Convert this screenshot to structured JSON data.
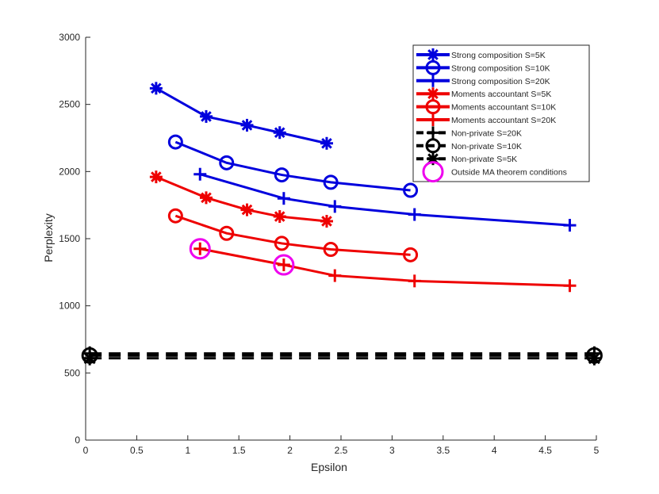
{
  "chart_data": {
    "type": "line",
    "xlabel": "Epsilon",
    "ylabel": "Perplexity",
    "title": "",
    "xlim": [
      0,
      5
    ],
    "ylim": [
      0,
      3000
    ],
    "x_ticks": [
      0,
      0.5,
      1,
      1.5,
      2,
      2.5,
      3,
      3.5,
      4,
      4.5,
      5
    ],
    "x_tick_labels": [
      "0",
      "0.5",
      "1",
      "1.5",
      "2",
      "2.5",
      "3",
      "3.5",
      "4",
      "4.5",
      "5"
    ],
    "y_ticks": [
      0,
      500,
      1000,
      1500,
      2000,
      2500,
      3000
    ],
    "y_tick_labels": [
      "0",
      "500",
      "1000",
      "1500",
      "2000",
      "2500",
      "3000"
    ],
    "legend_position": "top-right",
    "series": [
      {
        "name": "Strong composition S=5K",
        "color": "#0000dd",
        "marker": "asterisk",
        "dashed": false,
        "x": [
          0.69,
          1.18,
          1.58,
          1.9,
          2.36
        ],
        "y": [
          2620,
          2410,
          2345,
          2290,
          2210
        ]
      },
      {
        "name": "Strong composition S=10K",
        "color": "#0000dd",
        "marker": "circle",
        "dashed": false,
        "x": [
          0.88,
          1.38,
          1.92,
          2.4,
          3.18
        ],
        "y": [
          2220,
          2065,
          1975,
          1920,
          1860
        ]
      },
      {
        "name": "Strong composition S=20K",
        "color": "#0000dd",
        "marker": "plus",
        "dashed": false,
        "x": [
          1.12,
          1.94,
          2.44,
          3.22,
          4.74
        ],
        "y": [
          1980,
          1800,
          1740,
          1680,
          1600
        ]
      },
      {
        "name": "Moments accountant S=5K",
        "color": "#ee0000",
        "marker": "asterisk",
        "dashed": false,
        "x": [
          0.69,
          1.18,
          1.58,
          1.9,
          2.36
        ],
        "y": [
          1960,
          1805,
          1715,
          1665,
          1630
        ]
      },
      {
        "name": "Moments accountant S=10K",
        "color": "#ee0000",
        "marker": "circle",
        "dashed": false,
        "x": [
          0.88,
          1.38,
          1.92,
          2.4,
          3.18
        ],
        "y": [
          1670,
          1540,
          1465,
          1420,
          1380
        ]
      },
      {
        "name": "Moments accountant S=20K",
        "color": "#ee0000",
        "marker": "plus",
        "dashed": false,
        "x": [
          1.12,
          1.94,
          2.44,
          3.22,
          4.74
        ],
        "y": [
          1425,
          1305,
          1225,
          1185,
          1150
        ]
      },
      {
        "name": "Non-private S=20K",
        "color": "#000000",
        "marker": "plus",
        "dashed": true,
        "x": [
          0.04,
          4.98
        ],
        "y": [
          645,
          645
        ]
      },
      {
        "name": "Non-private S=10K",
        "color": "#000000",
        "marker": "circle",
        "dashed": true,
        "x": [
          0.04,
          4.98
        ],
        "y": [
          630,
          630
        ]
      },
      {
        "name": "Non-private S=5K",
        "color": "#000000",
        "marker": "asterisk",
        "dashed": true,
        "x": [
          0.04,
          4.98
        ],
        "y": [
          610,
          610
        ]
      },
      {
        "name": "Outside MA theorem conditions",
        "color": "#ee00ee",
        "marker": "big-circle",
        "dashed": false,
        "line": false,
        "x": [
          1.12,
          1.94
        ],
        "y": [
          1425,
          1305
        ]
      }
    ]
  }
}
